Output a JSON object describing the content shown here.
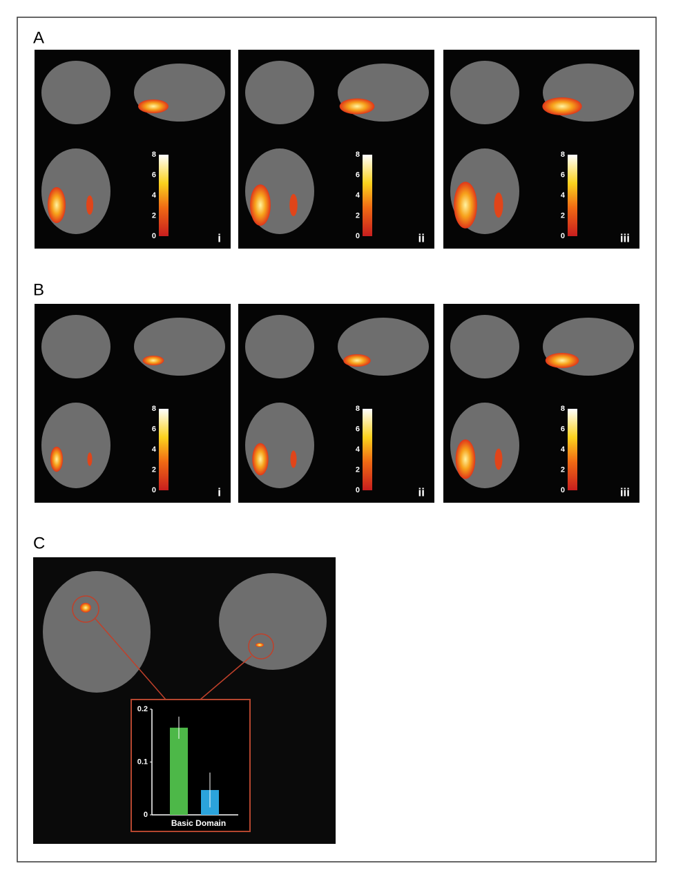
{
  "panels": [
    {
      "label": "A",
      "subpanels": [
        {
          "label": "i",
          "colorbar_ticks": [
            0,
            2,
            4,
            6,
            8
          ]
        },
        {
          "label": "ii",
          "colorbar_ticks": [
            0,
            2,
            4,
            6,
            8
          ]
        },
        {
          "label": "iii",
          "colorbar_ticks": [
            0,
            2,
            4,
            6,
            8
          ]
        }
      ]
    },
    {
      "label": "B",
      "subpanels": [
        {
          "label": "i",
          "colorbar_ticks": [
            0,
            2,
            4,
            6,
            8
          ]
        },
        {
          "label": "ii",
          "colorbar_ticks": [
            0,
            2,
            4,
            6,
            8
          ]
        },
        {
          "label": "iii",
          "colorbar_ticks": [
            0,
            2,
            4,
            6,
            8
          ]
        }
      ]
    },
    {
      "label": "C"
    }
  ],
  "chart_data": {
    "type": "bar",
    "xlabel": "Basic Domain",
    "categories": [
      null,
      null
    ],
    "values": [
      0.165,
      0.047
    ],
    "errors": [
      0.021,
      0.033
    ],
    "colors": [
      "#4db848",
      "#2ba3dc"
    ],
    "ylim": [
      0,
      0.2
    ],
    "yticks": [
      0,
      0.1,
      0.2
    ]
  }
}
